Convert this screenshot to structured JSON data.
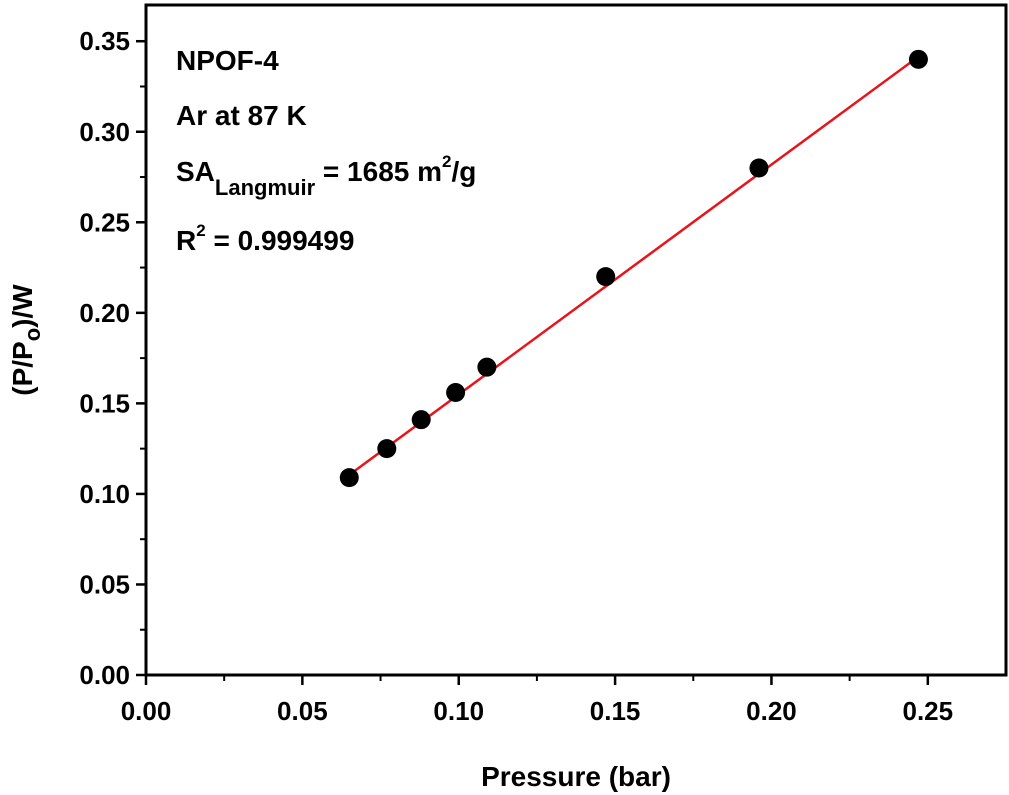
{
  "chart_data": {
    "type": "scatter",
    "xlabel": "Pressure (bar)",
    "ylabel": {
      "main": "(P/P",
      "sub": "o",
      "tail": ")/W"
    },
    "xlim": [
      0.0,
      0.275
    ],
    "ylim": [
      0.0,
      0.37
    ],
    "x_ticks": [
      "0.00",
      "0.05",
      "0.10",
      "0.15",
      "0.20",
      "0.25"
    ],
    "y_ticks": [
      "0.00",
      "0.05",
      "0.10",
      "0.15",
      "0.20",
      "0.25",
      "0.30",
      "0.35"
    ],
    "x_tick_values": [
      0.0,
      0.05,
      0.1,
      0.15,
      0.2,
      0.25
    ],
    "y_tick_values": [
      0.0,
      0.05,
      0.1,
      0.15,
      0.2,
      0.25,
      0.3,
      0.35
    ],
    "grid": false,
    "points": {
      "x": [
        0.065,
        0.077,
        0.088,
        0.099,
        0.109,
        0.147,
        0.196,
        0.247
      ],
      "y": [
        0.109,
        0.125,
        0.141,
        0.156,
        0.17,
        0.22,
        0.28,
        0.34
      ],
      "color": "#000000"
    },
    "fit_line": {
      "x_start": 0.065,
      "y_start": 0.1105,
      "x_end": 0.247,
      "y_end": 0.3415,
      "color": "#e8141c"
    },
    "annotations": {
      "line1": "NPOF-4",
      "line2": "Ar at 87 K",
      "sa_main": "SA",
      "sa_sub": "Langmuir",
      "sa_value": " = 1685 m",
      "sa_sup": "2",
      "sa_unit": "/g",
      "r_main": "R",
      "r_sup": "2",
      "r_value": " = 0.999499"
    }
  }
}
